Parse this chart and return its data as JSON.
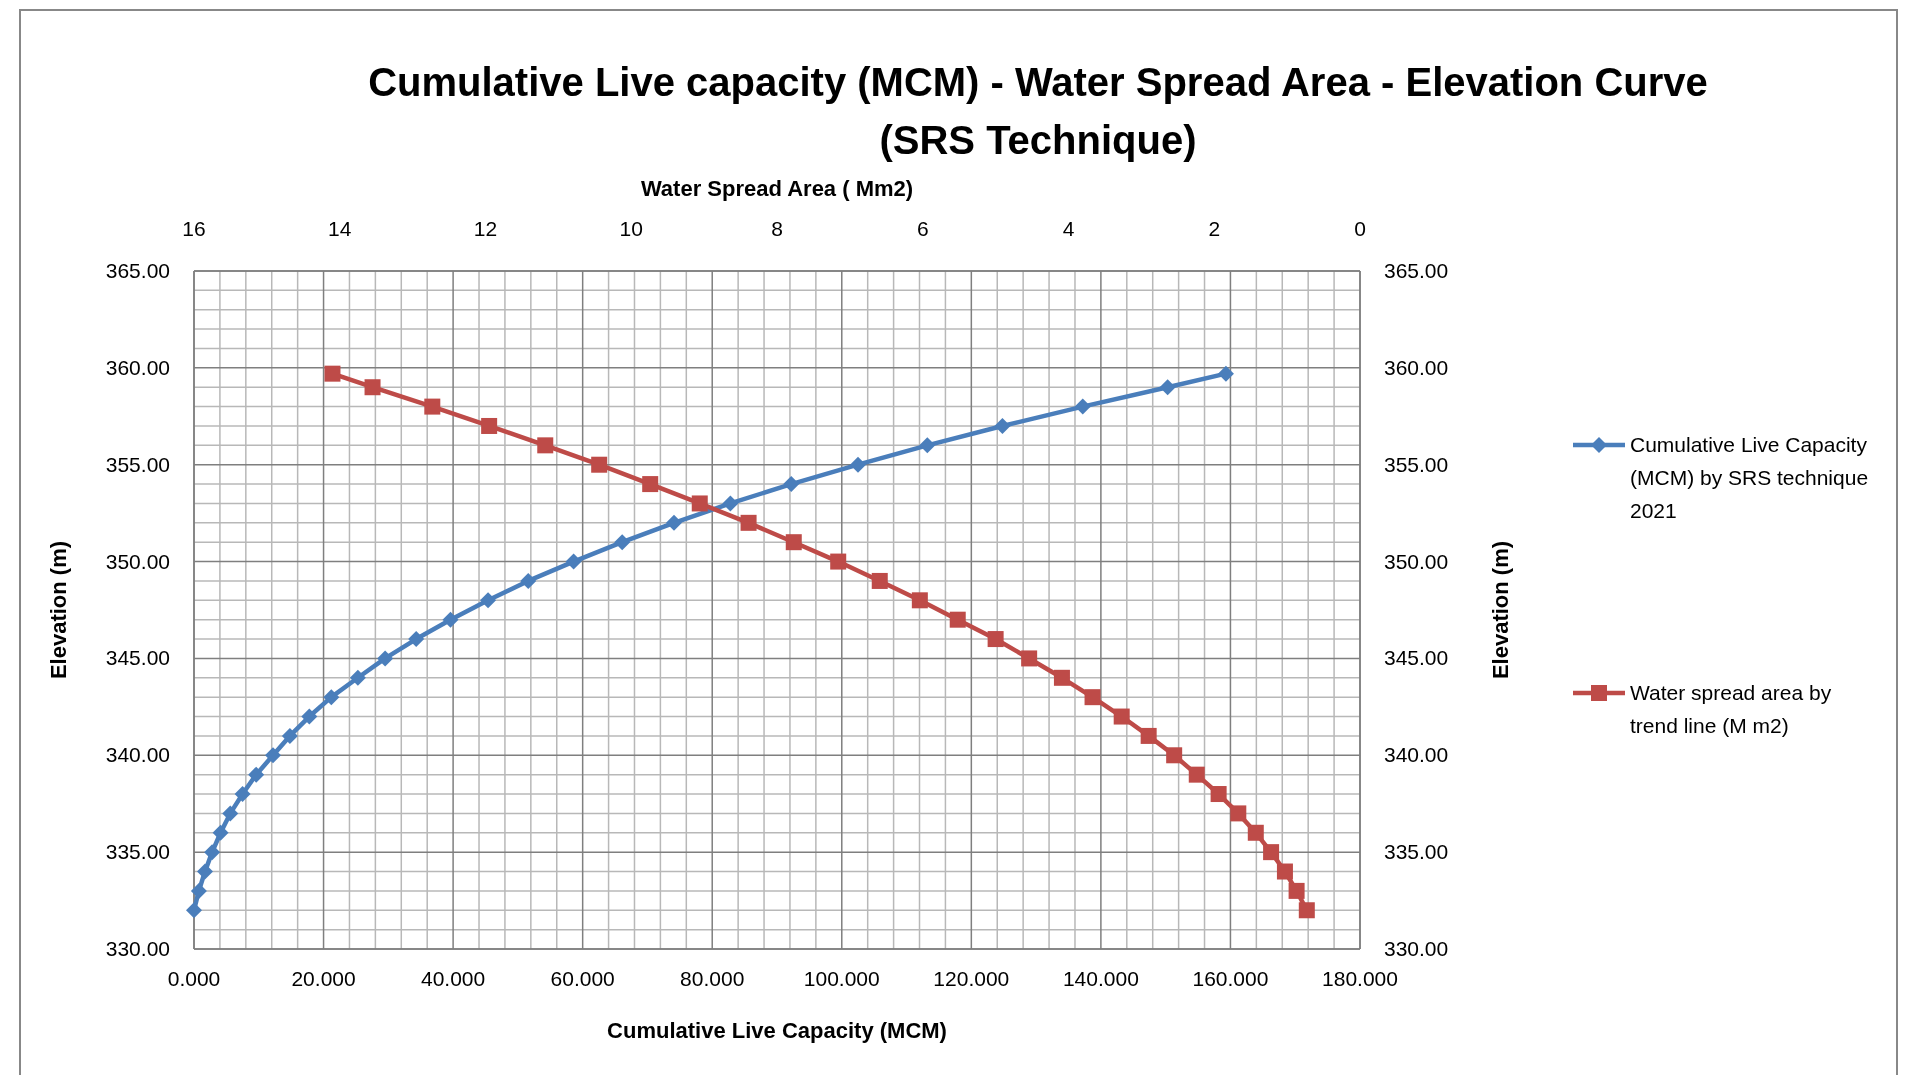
{
  "chart_data": {
    "type": "line",
    "title": "Cumulative Live capacity (MCM) - Water Spread Area - Elevation Curve (SRS Technique)",
    "xlabel": "Cumulative Live Capacity (MCM)",
    "x2label": "Water Spread Area ( Mm2)",
    "ylabel": "Elevation (m)",
    "y2label": "Elevation (m)",
    "xlim": [
      0,
      180
    ],
    "xticks": [
      {
        "value": 0,
        "label": "0.000"
      },
      {
        "value": 20,
        "label": "20.000"
      },
      {
        "value": 40,
        "label": "40.000"
      },
      {
        "value": 60,
        "label": "60.000"
      },
      {
        "value": 80,
        "label": "80.000"
      },
      {
        "value": 100,
        "label": "100.000"
      },
      {
        "value": 120,
        "label": "120.000"
      },
      {
        "value": 140,
        "label": "140.000"
      },
      {
        "value": 160,
        "label": "160.000"
      },
      {
        "value": 180,
        "label": "180.000"
      }
    ],
    "x2lim": [
      16,
      0
    ],
    "x2ticks": [
      16,
      14,
      12,
      10,
      8,
      6,
      4,
      2,
      0
    ],
    "ylim": [
      330,
      365
    ],
    "yticks": [
      {
        "value": 330,
        "label": "330.00"
      },
      {
        "value": 335,
        "label": "335.00"
      },
      {
        "value": 340,
        "label": "340.00"
      },
      {
        "value": 345,
        "label": "345.00"
      },
      {
        "value": 350,
        "label": "350.00"
      },
      {
        "value": 355,
        "label": "355.00"
      },
      {
        "value": 360,
        "label": "360.00"
      },
      {
        "value": 365,
        "label": "365.00"
      }
    ],
    "y2lim": [
      330,
      365
    ],
    "y2ticks": [
      {
        "value": 330,
        "label": "330.00"
      },
      {
        "value": 335,
        "label": "335.00"
      },
      {
        "value": 340,
        "label": "340.00"
      },
      {
        "value": 345,
        "label": "345.00"
      },
      {
        "value": 350,
        "label": "350.00"
      },
      {
        "value": 355,
        "label": "355.00"
      },
      {
        "value": 360,
        "label": "360.00"
      },
      {
        "value": 365,
        "label": "365.00"
      }
    ],
    "grid": true,
    "legend": "right",
    "line_style": "solid",
    "series": [
      {
        "name": "Cumulative Live Capacity (MCM) by SRS technique 2021",
        "color": "#4a7ebb",
        "marker": "diamond",
        "x": [
          0,
          0.75,
          1.7,
          2.8,
          4.1,
          5.6,
          7.5,
          9.6,
          12.2,
          14.8,
          17.8,
          21.2,
          25.3,
          29.5,
          34.3,
          39.6,
          45.4,
          51.6,
          58.6,
          66.1,
          74.1,
          82.8,
          92.2,
          102.5,
          113.2,
          124.8,
          137.2,
          150.3,
          159.3
        ],
        "values": [
          332,
          333,
          334,
          335,
          336,
          337,
          338,
          339,
          340,
          341,
          342,
          343,
          344,
          345,
          346,
          347,
          348,
          349,
          350,
          351,
          352,
          353,
          354,
          355,
          356,
          357,
          358,
          359,
          359.7
        ]
      },
      {
        "name": "Water spread area by trend line (M m2)",
        "color": "#be4b48",
        "marker": "square",
        "axis": "x2",
        "x": [
          14.1,
          13.55,
          12.73,
          11.95,
          11.18,
          10.44,
          9.74,
          9.06,
          8.39,
          7.77,
          7.16,
          6.59,
          6.04,
          5.52,
          5.0,
          4.54,
          4.09,
          3.67,
          3.27,
          2.9,
          2.55,
          2.24,
          1.94,
          1.67,
          1.43,
          1.22,
          1.03,
          0.87,
          0.73
        ],
        "values": [
          359.7,
          359,
          358,
          357,
          356,
          355,
          354,
          353,
          352,
          351,
          350,
          349,
          348,
          347,
          346,
          345,
          344,
          343,
          342,
          341,
          340,
          339,
          338,
          337,
          336,
          335,
          334,
          333,
          332
        ]
      }
    ]
  }
}
